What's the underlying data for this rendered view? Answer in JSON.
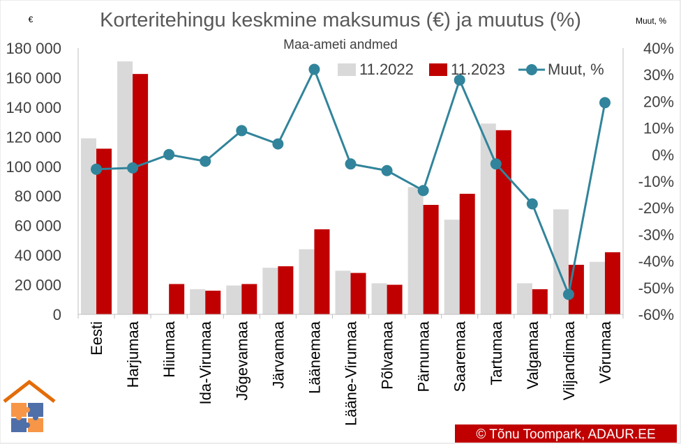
{
  "chart_data": {
    "type": "bar+line",
    "title": "Korteritehingu keskmine maksumus (€) ja muutus (%)",
    "subtitle": "Maa-ameti andmed",
    "y_left_unit": "€",
    "y_right_unit": "Muut, %",
    "ylim_left": [
      0,
      180000
    ],
    "ylim_right": [
      -60,
      40
    ],
    "y_left_ticks": [
      {
        "value": 0,
        "label": "0"
      },
      {
        "value": 20000,
        "label": "20 000"
      },
      {
        "value": 40000,
        "label": "40 000"
      },
      {
        "value": 60000,
        "label": "60 000"
      },
      {
        "value": 80000,
        "label": "80 000"
      },
      {
        "value": 100000,
        "label": "100 000"
      },
      {
        "value": 120000,
        "label": "120 000"
      },
      {
        "value": 140000,
        "label": "140 000"
      },
      {
        "value": 160000,
        "label": "160 000"
      },
      {
        "value": 180000,
        "label": "180 000"
      }
    ],
    "y_right_ticks": [
      {
        "value": 40,
        "label": "40%"
      },
      {
        "value": 30,
        "label": "30%"
      },
      {
        "value": 20,
        "label": "20%"
      },
      {
        "value": 10,
        "label": "10%"
      },
      {
        "value": 0,
        "label": "0%"
      },
      {
        "value": -10,
        "label": "-10%"
      },
      {
        "value": -20,
        "label": "-20%"
      },
      {
        "value": -30,
        "label": "-30%"
      },
      {
        "value": -40,
        "label": "-40%"
      },
      {
        "value": -50,
        "label": "-50%"
      },
      {
        "value": -60,
        "label": "-60%"
      }
    ],
    "categories": [
      "Eesti",
      "Harjumaa",
      "Hiiumaa",
      "Ida-Virumaa",
      "Jõgevamaa",
      "Järvamaa",
      "Läänemaa",
      "Lääne-Virumaa",
      "Põlvamaa",
      "Pärnumaa",
      "Saaremaa",
      "Tartumaa",
      "Valgamaa",
      "Viljandimaa",
      "Võrumaa"
    ],
    "series": [
      {
        "name": "11.2022",
        "kind": "bar",
        "axis": "left",
        "color": "#d9d9d9",
        "values": [
          119000,
          171000,
          null,
          17000,
          19500,
          31500,
          44000,
          29500,
          21000,
          86000,
          64000,
          129000,
          21000,
          71000,
          35500
        ]
      },
      {
        "name": "11.2023",
        "kind": "bar",
        "axis": "left",
        "color": "#c00000",
        "values": [
          112000,
          162500,
          20500,
          16000,
          20500,
          32500,
          57500,
          28000,
          20000,
          74000,
          81500,
          124500,
          17000,
          33500,
          42000
        ]
      },
      {
        "name": "Muut, %",
        "kind": "line",
        "axis": "right",
        "color": "#31849b",
        "values": [
          -5.5,
          -5,
          0,
          -2.5,
          9,
          4,
          32,
          -3.5,
          -6,
          -13.5,
          28,
          -3.5,
          -18.5,
          -52.5,
          19.5
        ]
      }
    ],
    "grid": false,
    "legend_position": "top-right"
  },
  "credit": "© Tõnu Toompark, ADAUR.EE",
  "logo": "ADAUR"
}
